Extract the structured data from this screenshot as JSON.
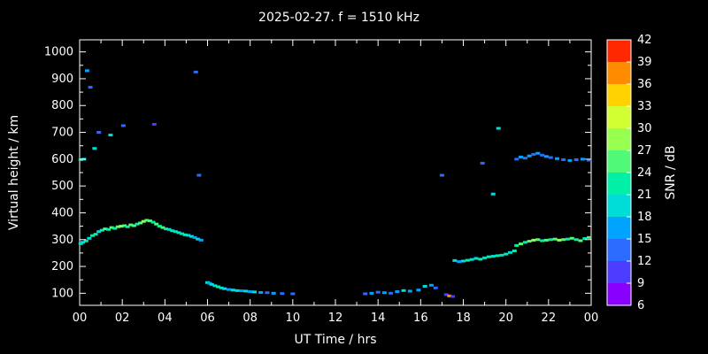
{
  "title": "2025-02-27. f = 1510 kHz",
  "colors": {
    "background": "#000000",
    "foreground": "#ffffff"
  },
  "chart_data": {
    "type": "scatter",
    "title": "2025-02-27. f = 1510 kHz",
    "xlabel": "UT Time / hrs",
    "ylabel": "Virtual height / km",
    "cblabel": "SNR / dB",
    "x_range": [
      0,
      24
    ],
    "y_range": [
      55,
      1045
    ],
    "x_ticks": [
      0,
      2,
      4,
      6,
      8,
      10,
      12,
      14,
      16,
      18,
      20,
      22,
      24
    ],
    "x_tick_labels": [
      "00",
      "02",
      "04",
      "06",
      "08",
      "10",
      "12",
      "14",
      "16",
      "18",
      "20",
      "22",
      "00"
    ],
    "y_ticks": [
      100,
      200,
      300,
      400,
      500,
      600,
      700,
      800,
      900,
      1000
    ],
    "grid": false,
    "legend": "colorbar-right",
    "colorbar": {
      "min": 6,
      "max": 42,
      "step": 3,
      "ticks": [
        6,
        9,
        12,
        15,
        18,
        21,
        24,
        27,
        30,
        33,
        36,
        39,
        42
      ],
      "colors": [
        "#8a00ff",
        "#4b3cff",
        "#2b6bff",
        "#00a4ff",
        "#00dcd8",
        "#00f0a8",
        "#50fa78",
        "#96ff50",
        "#d2ff32",
        "#ffd200",
        "#ff8c00",
        "#ff2800"
      ]
    },
    "points": [
      [
        0.05,
        285,
        18
      ],
      [
        0.05,
        598,
        21
      ],
      [
        0.15,
        290,
        18
      ],
      [
        0.2,
        600,
        18
      ],
      [
        0.3,
        295,
        21
      ],
      [
        0.35,
        930,
        15
      ],
      [
        0.45,
        305,
        18
      ],
      [
        0.5,
        868,
        12
      ],
      [
        0.6,
        315,
        21
      ],
      [
        0.7,
        640,
        18
      ],
      [
        0.75,
        320,
        21
      ],
      [
        0.9,
        330,
        18
      ],
      [
        0.9,
        700,
        12
      ],
      [
        1.05,
        335,
        21
      ],
      [
        1.2,
        340,
        24
      ],
      [
        1.35,
        338,
        21
      ],
      [
        1.45,
        690,
        18
      ],
      [
        1.5,
        345,
        24
      ],
      [
        1.65,
        342,
        21
      ],
      [
        1.8,
        348,
        24
      ],
      [
        1.95,
        350,
        27
      ],
      [
        2.05,
        725,
        12
      ],
      [
        2.1,
        352,
        24
      ],
      [
        2.25,
        348,
        21
      ],
      [
        2.4,
        355,
        24
      ],
      [
        2.55,
        352,
        24
      ],
      [
        2.7,
        358,
        21
      ],
      [
        2.85,
        362,
        24
      ],
      [
        3.0,
        368,
        27
      ],
      [
        3.15,
        372,
        24
      ],
      [
        3.3,
        370,
        24
      ],
      [
        3.45,
        365,
        21
      ],
      [
        3.5,
        730,
        9
      ],
      [
        3.6,
        358,
        24
      ],
      [
        3.75,
        350,
        21
      ],
      [
        3.9,
        345,
        24
      ],
      [
        4.05,
        340,
        21
      ],
      [
        4.2,
        338,
        18
      ],
      [
        4.35,
        333,
        21
      ],
      [
        4.5,
        330,
        18
      ],
      [
        4.65,
        326,
        21
      ],
      [
        4.8,
        322,
        18
      ],
      [
        4.95,
        318,
        21
      ],
      [
        5.1,
        316,
        18
      ],
      [
        5.25,
        312,
        18
      ],
      [
        5.4,
        308,
        15
      ],
      [
        5.45,
        925,
        12
      ],
      [
        5.55,
        302,
        18
      ],
      [
        5.6,
        540,
        12
      ],
      [
        5.7,
        298,
        15
      ],
      [
        6.0,
        140,
        18
      ],
      [
        6.1,
        137,
        15
      ],
      [
        6.2,
        133,
        18
      ],
      [
        6.35,
        128,
        18
      ],
      [
        6.5,
        124,
        21
      ],
      [
        6.65,
        120,
        18
      ],
      [
        6.8,
        117,
        18
      ],
      [
        7.0,
        114,
        15
      ],
      [
        7.2,
        112,
        18
      ],
      [
        7.4,
        110,
        18
      ],
      [
        7.6,
        109,
        15
      ],
      [
        7.8,
        108,
        18
      ],
      [
        8.0,
        106,
        15
      ],
      [
        8.2,
        105,
        18
      ],
      [
        8.5,
        103,
        15
      ],
      [
        8.8,
        102,
        12
      ],
      [
        9.1,
        100,
        15
      ],
      [
        9.5,
        99,
        12
      ],
      [
        10.0,
        98,
        12
      ],
      [
        13.4,
        98,
        12
      ],
      [
        13.7,
        100,
        15
      ],
      [
        14.0,
        104,
        12
      ],
      [
        14.3,
        102,
        15
      ],
      [
        14.6,
        100,
        12
      ],
      [
        14.9,
        106,
        15
      ],
      [
        15.2,
        110,
        18
      ],
      [
        15.5,
        108,
        15
      ],
      [
        15.9,
        112,
        15
      ],
      [
        16.2,
        126,
        18
      ],
      [
        16.5,
        130,
        15
      ],
      [
        16.7,
        120,
        12
      ],
      [
        17.0,
        540,
        12
      ],
      [
        17.2,
        95,
        9
      ],
      [
        17.35,
        90,
        36
      ],
      [
        17.5,
        88,
        9
      ],
      [
        17.6,
        222,
        18
      ],
      [
        17.8,
        218,
        15
      ],
      [
        18.0,
        220,
        18
      ],
      [
        18.2,
        223,
        21
      ],
      [
        18.4,
        226,
        18
      ],
      [
        18.6,
        230,
        18
      ],
      [
        18.8,
        227,
        21
      ],
      [
        18.9,
        585,
        12
      ],
      [
        19.0,
        232,
        18
      ],
      [
        19.2,
        236,
        21
      ],
      [
        19.4,
        238,
        18
      ],
      [
        19.4,
        470,
        18
      ],
      [
        19.6,
        240,
        21
      ],
      [
        19.65,
        715,
        18
      ],
      [
        19.8,
        242,
        18
      ],
      [
        20.0,
        246,
        21
      ],
      [
        20.2,
        252,
        18
      ],
      [
        20.4,
        258,
        21
      ],
      [
        20.5,
        600,
        12
      ],
      [
        20.7,
        608,
        15
      ],
      [
        20.9,
        604,
        12
      ],
      [
        21.1,
        612,
        15
      ],
      [
        21.3,
        618,
        12
      ],
      [
        21.5,
        622,
        15
      ],
      [
        21.7,
        615,
        12
      ],
      [
        21.9,
        610,
        15
      ],
      [
        22.1,
        606,
        12
      ],
      [
        22.4,
        602,
        15
      ],
      [
        22.7,
        598,
        12
      ],
      [
        23.0,
        595,
        15
      ],
      [
        23.3,
        598,
        12
      ],
      [
        23.6,
        600,
        15
      ],
      [
        23.9,
        596,
        12
      ],
      [
        20.5,
        278,
        21
      ],
      [
        20.7,
        284,
        24
      ],
      [
        20.9,
        290,
        21
      ],
      [
        21.1,
        294,
        24
      ],
      [
        21.3,
        298,
        27
      ],
      [
        21.5,
        300,
        24
      ],
      [
        21.7,
        296,
        21
      ],
      [
        21.9,
        298,
        24
      ],
      [
        22.1,
        300,
        21
      ],
      [
        22.3,
        302,
        24
      ],
      [
        22.5,
        298,
        27
      ],
      [
        22.7,
        300,
        24
      ],
      [
        22.9,
        302,
        21
      ],
      [
        23.1,
        305,
        24
      ],
      [
        23.3,
        300,
        21
      ],
      [
        23.5,
        296,
        24
      ],
      [
        23.7,
        304,
        21
      ],
      [
        23.9,
        308,
        24
      ]
    ]
  }
}
